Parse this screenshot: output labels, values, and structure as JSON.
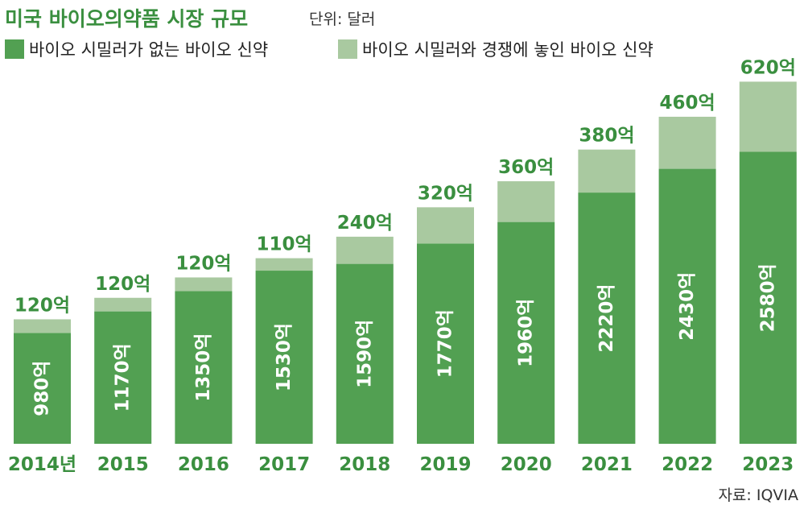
{
  "header": {
    "title": "미국 바이오의약품 시장 규모",
    "unit": "단위: 달러"
  },
  "legend": [
    {
      "label": "바이오 시밀러가 없는 바이오 신약",
      "color": "#52a052"
    },
    {
      "label": "바이오 시밀러와 경쟁에 놓인 바이오 신약",
      "color": "#a9c9a0"
    }
  ],
  "chart_data": {
    "type": "bar",
    "stacked": true,
    "categories": [
      "2014년",
      "2015",
      "2016",
      "2017",
      "2018",
      "2019",
      "2020",
      "2021",
      "2022",
      "2023"
    ],
    "series": [
      {
        "name": "바이오 시밀러가 없는 바이오 신약",
        "color": "#52a052",
        "values": [
          980,
          1170,
          1350,
          1530,
          1590,
          1770,
          1960,
          2220,
          2430,
          2580
        ],
        "labels": [
          "980억",
          "1170억",
          "1350억",
          "1530억",
          "1590억",
          "1770억",
          "1960억",
          "2220억",
          "2430억",
          "2580억"
        ]
      },
      {
        "name": "바이오 시밀러와 경쟁에 놓인 바이오 신약",
        "color": "#a9c9a0",
        "values": [
          120,
          120,
          120,
          110,
          240,
          320,
          360,
          380,
          460,
          620
        ],
        "labels": [
          "120억",
          "120억",
          "120억",
          "110억",
          "240억",
          "320억",
          "360억",
          "380억",
          "460억",
          "620억"
        ]
      }
    ],
    "title": "미국 바이오의약품 시장 규모",
    "unit": "단위: 달러",
    "ylim": [
      0,
      3200
    ],
    "grid": false,
    "legend_position": "top-left"
  },
  "source": "자료: IQVIA"
}
